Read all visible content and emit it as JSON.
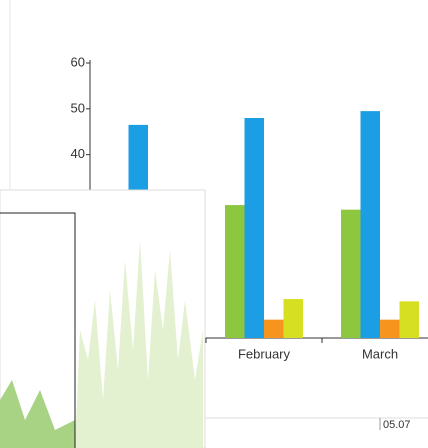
{
  "chart_data": {
    "type": "bar",
    "categories": [
      null,
      "February",
      "March"
    ],
    "series": [
      {
        "color": "#8dc63f",
        "values": [
          null,
          29,
          28
        ]
      },
      {
        "color": "#1b9ee3",
        "values": [
          46.5,
          48,
          49.5
        ]
      },
      {
        "color": "#f7941d",
        "values": [
          null,
          4,
          4
        ]
      },
      {
        "color": "#d7df23",
        "values": [
          null,
          8.5,
          8
        ]
      }
    ],
    "ylim": [
      0,
      60
    ],
    "yticks": [
      40,
      50,
      60
    ]
  },
  "overlay": {
    "axis_label": "05.07"
  }
}
